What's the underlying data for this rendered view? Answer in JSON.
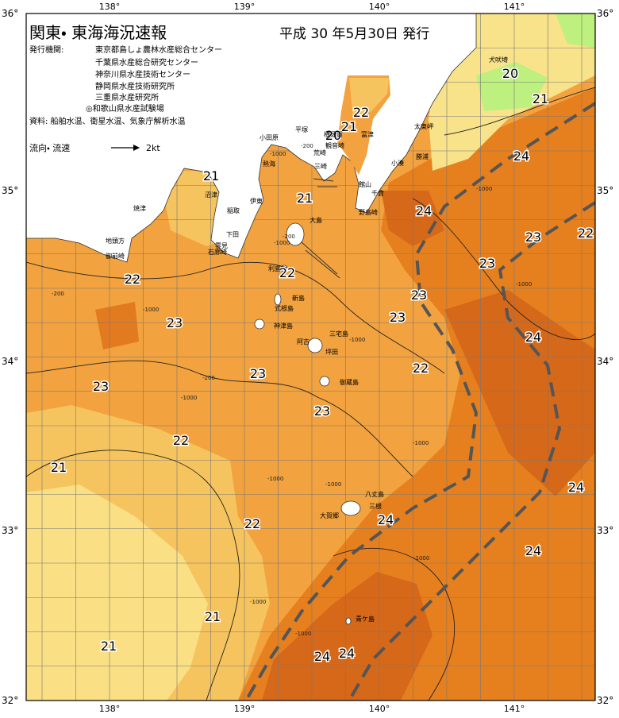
{
  "header": {
    "title": "関東・ 東海海況速報",
    "date": "平成 30 年5月30日 発行"
  },
  "issuers": {
    "label": "発行機関:",
    "items": [
      "東京都島しょ農林水産総合センター",
      "千葉県水産総合研究センター",
      "神奈川県水産技術センター",
      "静岡県水産技術研究所",
      "三重県水産研究所",
      "◎和歌山県水産試験場"
    ]
  },
  "source": "資料: 船舶水温、衛星水温、気象庁解析水温",
  "current_legend": {
    "label": "流向・ 流速",
    "speed": "2kt"
  },
  "lon_labels": [
    "138°",
    "139°",
    "140°",
    "141°"
  ],
  "lat_labels": [
    "36°",
    "35°",
    "34°",
    "33°",
    "32°"
  ],
  "isotherm_labels": [
    20,
    21,
    24,
    22,
    21,
    20,
    21,
    21,
    24,
    23,
    22,
    23,
    22,
    22,
    23,
    23,
    23,
    24,
    22,
    23,
    23,
    23,
    22,
    21,
    24,
    22,
    24,
    24,
    21,
    21,
    24,
    24
  ],
  "place_names": [
    "犬吠埼",
    "太東岬",
    "勝浦",
    "小湊",
    "館山",
    "千倉",
    "野島崎",
    "富津",
    "観音崎",
    "横須賀",
    "平塚",
    "荒崎",
    "三崎",
    "小田原",
    "熱海",
    "伊東",
    "稲取",
    "下田",
    "雲見",
    "石廊崎",
    "沼津",
    "焼津",
    "地頭方",
    "御前崎",
    "大島",
    "利島",
    "新島",
    "式根島",
    "神津島",
    "三宅島",
    "阿古",
    "坪田",
    "御蔵島",
    "八丈島",
    "三根",
    "大賀郷",
    "青ケ島"
  ],
  "depth_labels": [
    "-200",
    "-1000",
    "-200",
    "-1000",
    "-200",
    "-1000",
    "-1000",
    "-200",
    "-1000",
    "-1000",
    "-1000",
    "-1000",
    "-1000",
    "-1000",
    "-1000",
    "-1000",
    "-1000"
  ]
}
